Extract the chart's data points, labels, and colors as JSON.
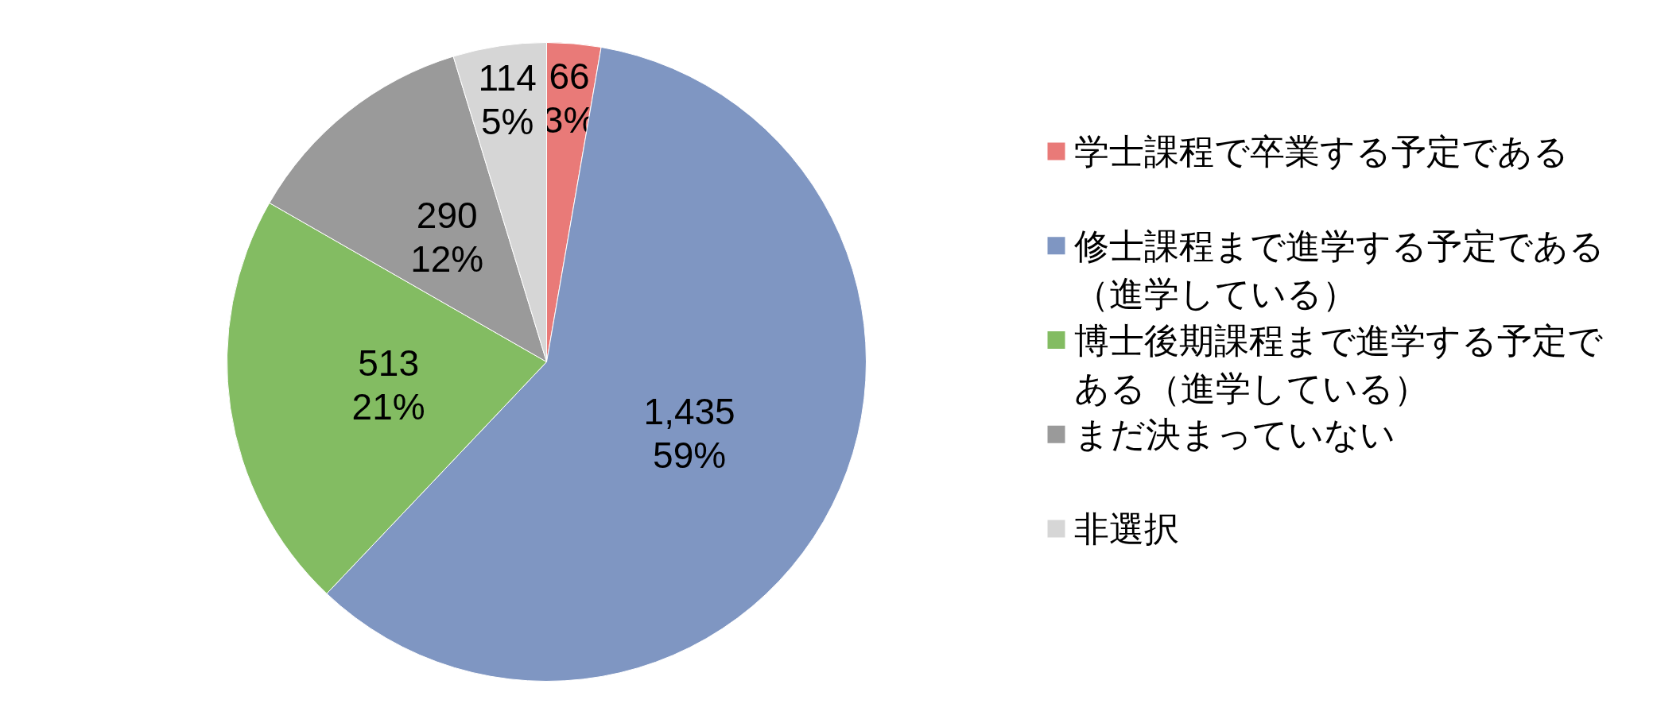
{
  "chart_data": {
    "type": "pie",
    "categories": [
      "学士課程で卒業する予定である",
      "修士課程まで進学する予定である（進学している）",
      "博士後期課程まで進学する予定である（進学している）",
      "まだ決まっていない",
      "非選択"
    ],
    "values": [
      66,
      1435,
      513,
      290,
      114
    ],
    "colors": [
      "#e97a78",
      "#7f96c2",
      "#83bc62",
      "#9a9a9a",
      "#d6d6d6"
    ],
    "value_labels": [
      "66\n3%",
      "1,435\n59%",
      "513\n21%",
      "290\n12%",
      "114\n5%"
    ],
    "legend": "right"
  }
}
